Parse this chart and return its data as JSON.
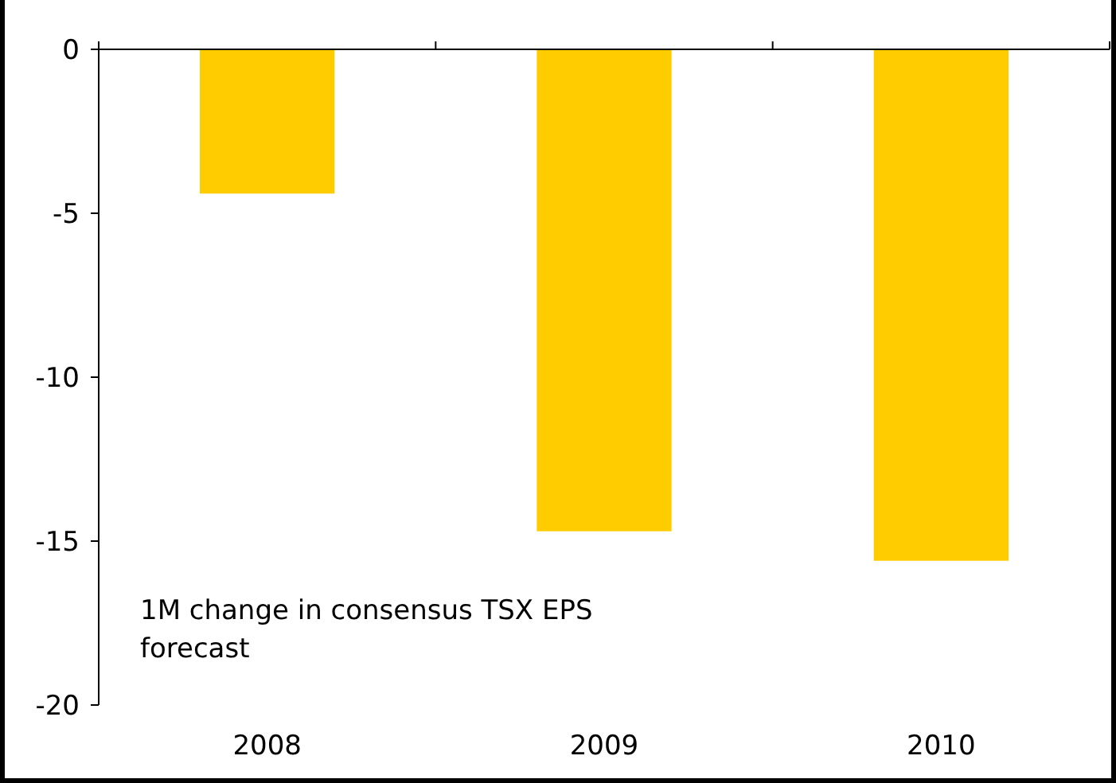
{
  "chart_data": {
    "type": "bar",
    "categories": [
      "2008",
      "2009",
      "2010"
    ],
    "values": [
      -4.4,
      -14.7,
      -15.6
    ],
    "color": "#ffcc00",
    "ylim": [
      -20,
      0
    ],
    "yticks": [
      -20,
      -15,
      -10,
      -5,
      0
    ],
    "grid": false,
    "annotations": [
      "1M change in consensus TSX EPS forecast"
    ]
  }
}
